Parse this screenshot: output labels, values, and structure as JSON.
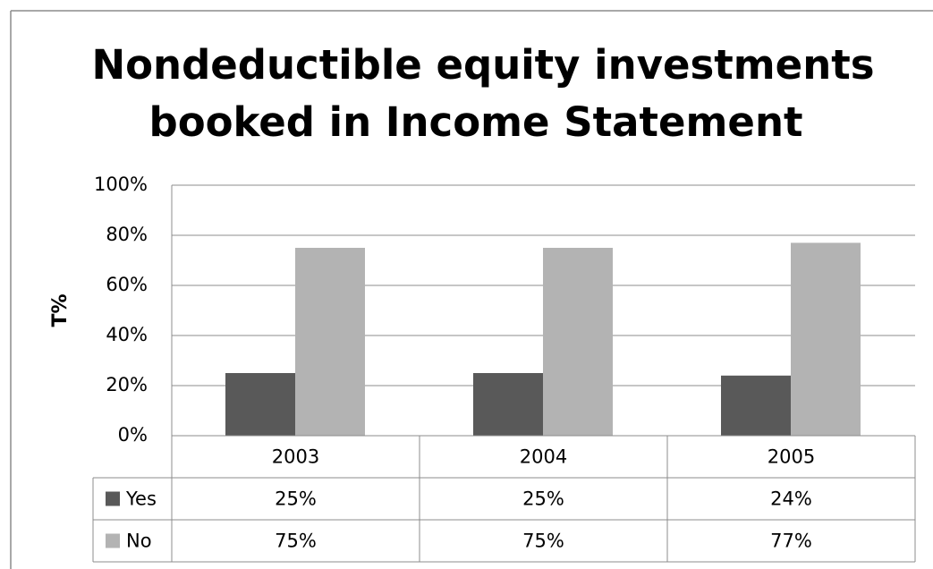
{
  "chart_data": {
    "type": "bar",
    "title": [
      "Nondeductible equity investments",
      "booked in Income Statement"
    ],
    "y_label": "T%",
    "categories": [
      "2003",
      "2004",
      "2005"
    ],
    "series": [
      {
        "name": "Yes",
        "color": "#595959",
        "values": [
          25,
          25,
          24
        ],
        "value_labels": [
          "25%",
          "25%",
          "24%"
        ]
      },
      {
        "name": "No",
        "color": "#b3b3b3",
        "values": [
          75,
          75,
          77
        ],
        "value_labels": [
          "75%",
          "75%",
          "77%"
        ]
      }
    ],
    "ylim": [
      0,
      100
    ],
    "yticks": [
      {
        "value": 0,
        "label": "0%"
      },
      {
        "value": 20,
        "label": "20%"
      },
      {
        "value": 40,
        "label": "40%"
      },
      {
        "value": 60,
        "label": "60%"
      },
      {
        "value": 80,
        "label": "80%"
      },
      {
        "value": 100,
        "label": "100%"
      }
    ],
    "grid": true,
    "data_table": true
  }
}
